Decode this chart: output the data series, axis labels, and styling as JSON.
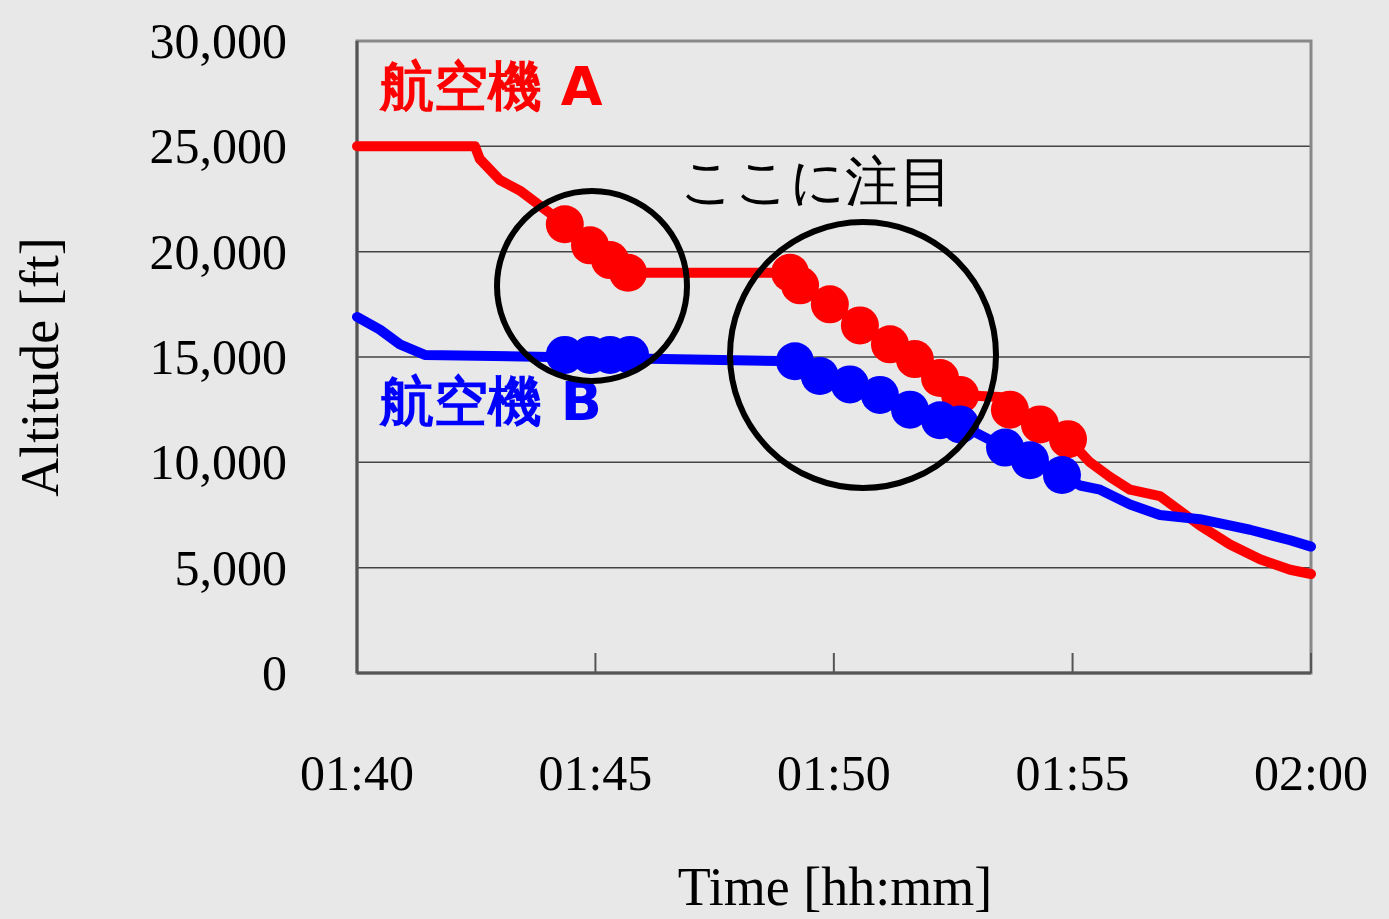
{
  "chart_data": {
    "type": "line",
    "xlabel": "Time [hh:mm]",
    "ylabel": "Altitude [ft]",
    "xlim": [
      1.6667,
      2
    ],
    "ylim": [
      0,
      30000
    ],
    "xticks": [
      {
        "value": 1.6667,
        "label": "01:40"
      },
      {
        "value": 1.75,
        "label": "01:45"
      },
      {
        "value": 1.8333,
        "label": "01:50"
      },
      {
        "value": 1.9167,
        "label": "01:55"
      },
      {
        "value": 2,
        "label": "02:00"
      }
    ],
    "yticks": [
      0,
      {
        "value": 5000,
        "label": "5,000"
      },
      {
        "value": 10000,
        "label": "10,000"
      },
      {
        "value": 15000,
        "label": "15,000"
      },
      {
        "value": 20000,
        "label": "20,000"
      },
      {
        "value": 25000,
        "label": "25,000"
      },
      {
        "value": 30000,
        "label": "30,000"
      }
    ],
    "grid": "y",
    "marker": "none",
    "annotations": [
      "ここに注目"
    ],
    "series": [
      {
        "name": "航空機 A",
        "color": "#ff0000",
        "x": [
          1.6667,
          1.7079,
          1.7096,
          1.7166,
          1.7236,
          1.7324,
          1.7393,
          1.7481,
          1.7551,
          1.7614,
          1.818,
          1.8215,
          1.8319,
          1.8424,
          1.8529,
          1.8616,
          1.8704,
          1.8774,
          1.8913,
          1.8948,
          1.9053,
          1.9151,
          1.9228,
          1.9298,
          1.9368,
          1.9472,
          1.9542,
          1.9612,
          1.9717,
          1.9822,
          1.9927,
          2
        ],
        "values": [
          25000,
          25000,
          24400,
          23400,
          22900,
          22000,
          21300,
          20300,
          19600,
          19000,
          19000,
          18400,
          17500,
          16500,
          15600,
          14900,
          14000,
          13200,
          13100,
          12500,
          11800,
          11100,
          10000,
          9300,
          8700,
          8400,
          7700,
          7000,
          6100,
          5400,
          4900,
          4700
        ]
      },
      {
        "name": "航空機 B",
        "color": "#0000ff",
        "x": [
          1.6667,
          1.6747,
          1.6817,
          1.6904,
          1.8197,
          1.8284,
          1.8389,
          1.8494,
          1.8599,
          1.8704,
          1.8774,
          1.8844,
          1.8931,
          1.9018,
          1.913,
          1.9193,
          1.9263,
          1.9368,
          1.9472,
          1.9612,
          1.9787,
          1.9927,
          2
        ],
        "values": [
          16900,
          16300,
          15600,
          15100,
          14800,
          14100,
          13700,
          13200,
          12500,
          12000,
          11800,
          11300,
          10700,
          10100,
          9400,
          8900,
          8700,
          8000,
          7500,
          7300,
          6800,
          6300,
          6000
        ]
      },
      {
        "type": "scatter",
        "marker": "circle",
        "color": "#ff0000",
        "x": [
          1.7393,
          1.7481,
          1.7551,
          1.7614,
          1.818,
          1.8215,
          1.8319,
          1.8424,
          1.8529,
          1.8616,
          1.8704,
          1.8774,
          1.8948,
          1.9053,
          1.9151
        ],
        "values": [
          21300,
          20300,
          19600,
          19000,
          19000,
          18400,
          17500,
          16500,
          15600,
          14900,
          14000,
          13200,
          12500,
          11800,
          11100
        ]
      },
      {
        "type": "scatter",
        "marker": "circle",
        "color": "#0000ff",
        "x": [
          1.7393,
          1.7481,
          1.7551,
          1.7621,
          1.8197,
          1.8284,
          1.8389,
          1.8494,
          1.8599,
          1.8704,
          1.8774,
          1.8931,
          1.9018,
          1.913
        ],
        "values": [
          15100,
          15100,
          15100,
          15100,
          14800,
          14100,
          13700,
          13200,
          12500,
          12000,
          11800,
          10700,
          10100,
          9400
        ]
      }
    ]
  }
}
